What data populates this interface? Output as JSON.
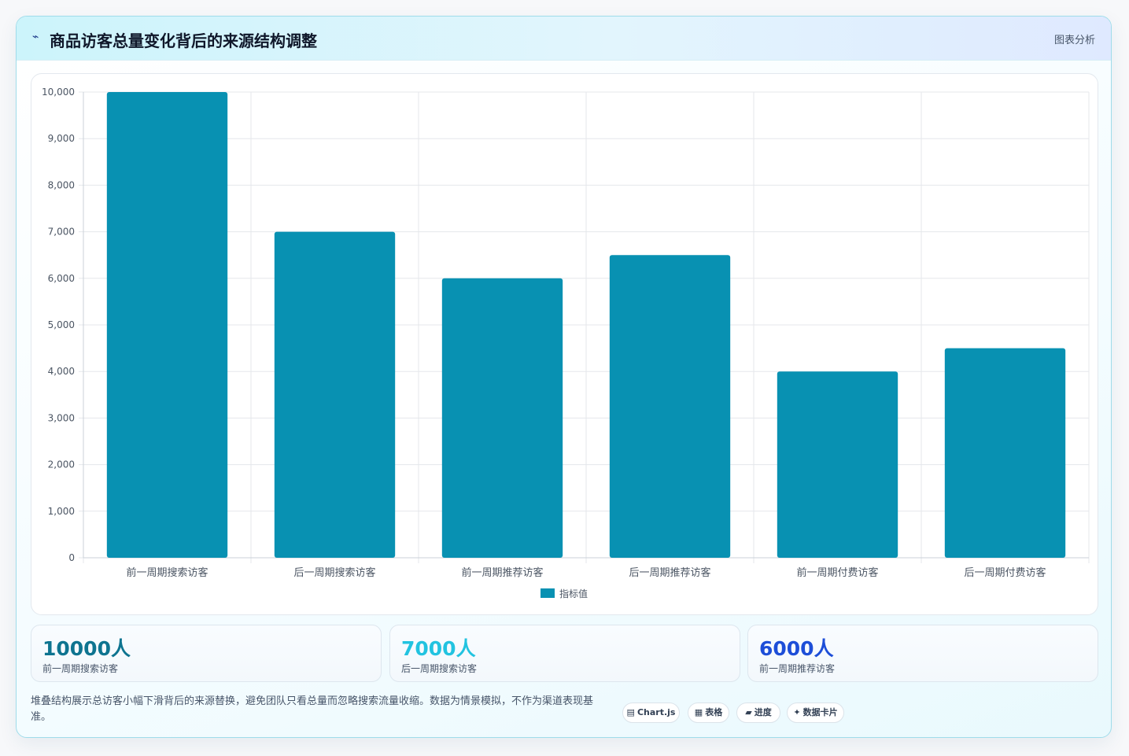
{
  "header": {
    "icon": "trend-line-icon",
    "title": "商品访客总量变化背后的来源结构调整",
    "tag": "图表分析"
  },
  "colors": {
    "bar": "#0891b2",
    "stat_1": "#0e7490",
    "stat_2": "#22c3e0",
    "stat_3": "#1d4ed8"
  },
  "chart_data": {
    "type": "bar",
    "categories": [
      "前一周期搜索访客",
      "后一周期搜索访客",
      "前一周期推荐访客",
      "后一周期推荐访客",
      "前一周期付费访客",
      "后一周期付费访客"
    ],
    "series": [
      {
        "name": "指标值",
        "values": [
          10000,
          7000,
          6000,
          6500,
          4000,
          4500
        ]
      }
    ],
    "ylim": [
      0,
      10000
    ],
    "yticks": [
      "0",
      "1,000",
      "2,000",
      "3,000",
      "4,000",
      "5,000",
      "6,000",
      "7,000",
      "8,000",
      "9,000",
      "10,000"
    ],
    "grid": true,
    "legend": "bottom",
    "xlabel": "",
    "ylabel": ""
  },
  "stats": [
    {
      "value": "10000人",
      "label": "前一周期搜索访客"
    },
    {
      "value": "7000人",
      "label": "后一周期搜索访客"
    },
    {
      "value": "6000人",
      "label": "前一周期推荐访客"
    }
  ],
  "note": "堆叠结构展示总访客小幅下滑背后的来源替换，避免团队只看总量而忽略搜索流量收缩。数据为情景模拟，不作为渠道表现基准。",
  "pills": [
    {
      "icon": "chart-icon",
      "glyph": "▤",
      "label": "Chart.js"
    },
    {
      "icon": "table-icon",
      "glyph": "▦",
      "label": "表格"
    },
    {
      "icon": "progress-icon",
      "glyph": "▰",
      "label": "进度"
    },
    {
      "icon": "card-icon",
      "glyph": "✦",
      "label": "数据卡片"
    }
  ]
}
